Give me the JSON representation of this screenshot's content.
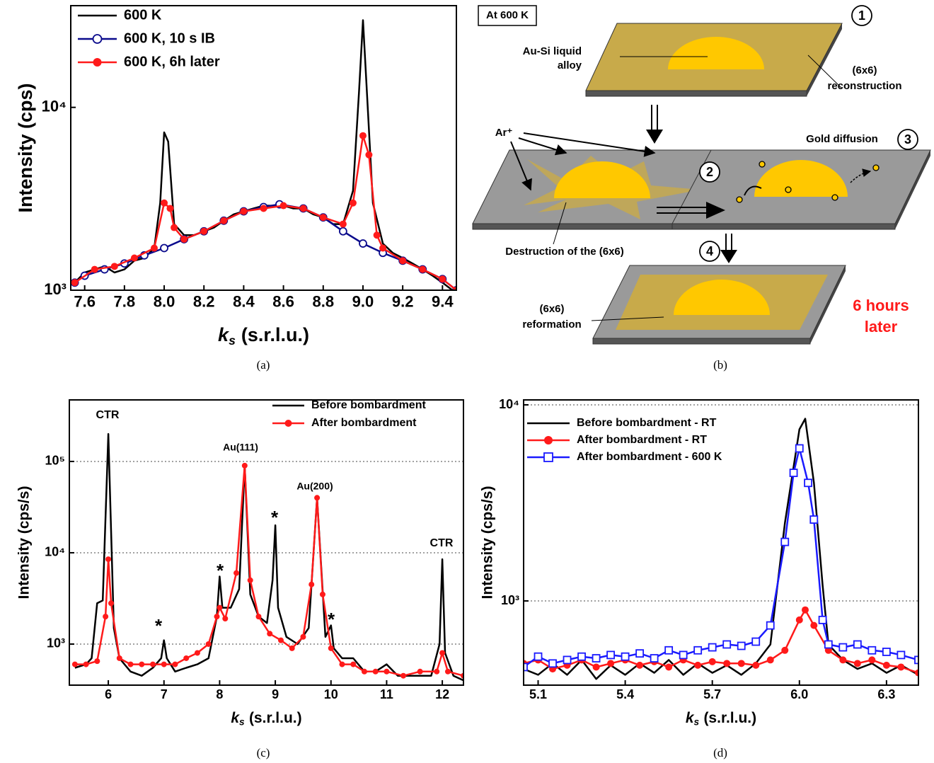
{
  "chart_data": [
    {
      "type": "line",
      "caption": "(a)",
      "x_label": {
        "symbol": "k",
        "subscript": "s",
        "unit": "(s.r.l.u.)"
      },
      "y_label": "Intensity (cps)",
      "xlim": [
        7.53,
        9.47
      ],
      "ylim": [
        1000,
        36000
      ],
      "y_scale": "log",
      "grid": false,
      "legend": "upper-left",
      "xticks": [
        7.6,
        7.8,
        {
          "value": 8,
          "label": "8.0"
        },
        8.2,
        8.4,
        8.6,
        8.8,
        {
          "value": 9,
          "label": "9.0"
        },
        9.2,
        9.4
      ],
      "yticks": [
        {
          "value": 1000,
          "label": "10³"
        },
        {
          "value": 10000,
          "label": "10⁴"
        }
      ],
      "series": [
        {
          "name": "600 K",
          "color": "#000000",
          "marker": "none",
          "x": [
            7.55,
            7.6,
            7.65,
            7.7,
            7.75,
            7.8,
            7.85,
            7.9,
            7.95,
            7.98,
            8.0,
            8.02,
            8.05,
            8.1,
            8.15,
            8.2,
            8.25,
            8.3,
            8.35,
            8.4,
            8.45,
            8.5,
            8.55,
            8.6,
            8.65,
            8.7,
            8.75,
            8.8,
            8.85,
            8.9,
            8.95,
            8.98,
            9.0,
            9.02,
            9.05,
            9.1,
            9.15,
            9.2,
            9.25,
            9.3,
            9.35,
            9.4,
            9.45
          ],
          "values": [
            1100,
            1250,
            1300,
            1350,
            1250,
            1300,
            1450,
            1500,
            1700,
            3000,
            7300,
            6500,
            2300,
            2000,
            2000,
            2100,
            2200,
            2400,
            2600,
            2700,
            2800,
            2900,
            2900,
            2900,
            2800,
            2800,
            2600,
            2500,
            2300,
            2300,
            3500,
            12000,
            30000,
            12000,
            3000,
            1800,
            1600,
            1500,
            1400,
            1300,
            1200,
            1100,
            1000
          ]
        },
        {
          "name": "600 K, 10 s IB",
          "color": "#0a0a8c",
          "marker": "open-circle",
          "x": [
            7.55,
            7.6,
            7.7,
            7.8,
            7.9,
            8.0,
            8.1,
            8.2,
            8.3,
            8.4,
            8.5,
            8.58,
            8.7,
            8.8,
            8.9,
            9.0,
            9.1,
            9.2,
            9.3,
            9.4,
            9.47
          ],
          "values": [
            1100,
            1200,
            1300,
            1400,
            1550,
            1700,
            1900,
            2100,
            2400,
            2700,
            2850,
            2950,
            2800,
            2500,
            2100,
            1800,
            1600,
            1450,
            1300,
            1150,
            1000
          ]
        },
        {
          "name": "600 K, 6h later",
          "color": "#ff1a1a",
          "marker": "filled-circle",
          "x": [
            7.55,
            7.65,
            7.75,
            7.85,
            7.95,
            8.0,
            8.03,
            8.05,
            8.1,
            8.2,
            8.3,
            8.4,
            8.5,
            8.6,
            8.7,
            8.8,
            8.9,
            8.95,
            9.0,
            9.03,
            9.07,
            9.1,
            9.2,
            9.3,
            9.4,
            9.47
          ],
          "values": [
            1100,
            1300,
            1350,
            1500,
            1700,
            3000,
            2800,
            2200,
            1900,
            2100,
            2400,
            2700,
            2800,
            2900,
            2800,
            2500,
            2300,
            3000,
            7000,
            5500,
            2000,
            1700,
            1450,
            1300,
            1150,
            1000
          ]
        }
      ]
    },
    {
      "type": "line",
      "caption": "(c)",
      "x_label": {
        "symbol": "k",
        "subscript": "s",
        "unit": "(s.r.l.u.)"
      },
      "y_label": "Intensity (cps/s)",
      "xlim": [
        5.3,
        12.38
      ],
      "ylim": [
        355,
        472000
      ],
      "y_scale": "log",
      "grid": true,
      "legend": "upper-right",
      "xticks": [
        6,
        7,
        8,
        9,
        10,
        11,
        12
      ],
      "yticks": [
        {
          "value": 1000,
          "label": "10³"
        },
        {
          "value": 10000,
          "label": "10⁴"
        },
        {
          "value": 100000,
          "label": "10⁵"
        }
      ],
      "annotations": [
        "CTR",
        "Au(111)",
        "Au(200)",
        "CTR",
        "*",
        "*",
        "*",
        "*"
      ],
      "series": [
        {
          "name": "Before bombardment",
          "color": "#000000",
          "marker": "none",
          "x": [
            5.4,
            5.6,
            5.7,
            5.8,
            5.9,
            6.0,
            6.1,
            6.2,
            6.4,
            6.6,
            6.8,
            6.95,
            7.0,
            7.05,
            7.2,
            7.4,
            7.6,
            7.8,
            7.95,
            8.0,
            8.05,
            8.2,
            8.35,
            8.45,
            8.55,
            8.7,
            8.85,
            8.95,
            9.0,
            9.05,
            9.2,
            9.4,
            9.6,
            9.75,
            9.9,
            10.0,
            10.05,
            10.2,
            10.4,
            10.6,
            10.8,
            11.0,
            11.2,
            11.5,
            11.8,
            11.95,
            12.0,
            12.05,
            12.2,
            12.38
          ],
          "values": [
            550,
            600,
            700,
            2800,
            3000,
            200000,
            1500,
            700,
            500,
            450,
            550,
            700,
            1100,
            700,
            500,
            550,
            600,
            700,
            2000,
            5500,
            2500,
            2500,
            4000,
            90000,
            3500,
            2000,
            1700,
            5000,
            20000,
            2500,
            1200,
            1000,
            1500,
            40000,
            1200,
            1600,
            900,
            700,
            700,
            500,
            500,
            600,
            450,
            450,
            450,
            1000,
            8500,
            800,
            450,
            400
          ]
        },
        {
          "name": "After bombardment",
          "color": "#ff1a1a",
          "marker": "filled-circle",
          "x": [
            5.4,
            5.6,
            5.8,
            5.95,
            6.0,
            6.05,
            6.2,
            6.4,
            6.6,
            6.8,
            7.0,
            7.2,
            7.4,
            7.6,
            7.8,
            7.95,
            8.0,
            8.1,
            8.3,
            8.45,
            8.55,
            8.7,
            8.9,
            9.1,
            9.3,
            9.5,
            9.65,
            9.75,
            9.85,
            10.0,
            10.2,
            10.4,
            10.6,
            10.8,
            11.0,
            11.3,
            11.6,
            11.9,
            12.0,
            12.1,
            12.38
          ],
          "values": [
            600,
            600,
            650,
            2000,
            8500,
            2800,
            700,
            600,
            600,
            600,
            600,
            600,
            700,
            800,
            1000,
            2000,
            2500,
            1900,
            6000,
            90000,
            5000,
            2000,
            1300,
            1100,
            900,
            1200,
            4500,
            40000,
            3500,
            900,
            600,
            600,
            500,
            500,
            500,
            450,
            500,
            500,
            800,
            500,
            450
          ]
        }
      ]
    },
    {
      "type": "line",
      "caption": "(d)",
      "x_label": {
        "symbol": "k",
        "subscript": "s",
        "unit": "(s.r.l.u.)"
      },
      "y_label": "Intensity (cps/s)",
      "xlim": [
        5.05,
        6.41
      ],
      "ylim": [
        372,
        10600
      ],
      "y_scale": "log",
      "grid": true,
      "legend": "upper-left",
      "xticks": [
        5.1,
        5.4,
        5.7,
        {
          "value": 6,
          "label": "6.0"
        },
        6.3
      ],
      "yticks": [
        {
          "value": 1000,
          "label": "10³"
        },
        {
          "value": 10000,
          "label": "10⁴"
        }
      ],
      "series": [
        {
          "name": "Before bombardment - RT",
          "color": "#000000",
          "marker": "none",
          "x": [
            5.05,
            5.1,
            5.15,
            5.2,
            5.25,
            5.3,
            5.35,
            5.4,
            5.45,
            5.5,
            5.55,
            5.6,
            5.65,
            5.7,
            5.75,
            5.8,
            5.85,
            5.9,
            5.95,
            6.0,
            6.02,
            6.05,
            6.08,
            6.1,
            6.15,
            6.2,
            6.25,
            6.3,
            6.35,
            6.41
          ],
          "values": [
            450,
            420,
            480,
            420,
            500,
            400,
            470,
            420,
            480,
            430,
            500,
            420,
            480,
            430,
            470,
            420,
            480,
            600,
            2500,
            7500,
            8500,
            4000,
            1200,
            600,
            500,
            450,
            480,
            430,
            470,
            420
          ]
        },
        {
          "name": "After bombardment - RT",
          "color": "#ff1a1a",
          "marker": "filled-circle",
          "x": [
            5.05,
            5.1,
            5.15,
            5.2,
            5.25,
            5.3,
            5.35,
            5.4,
            5.45,
            5.5,
            5.55,
            5.6,
            5.65,
            5.7,
            5.75,
            5.8,
            5.85,
            5.9,
            5.95,
            6.0,
            6.02,
            6.05,
            6.1,
            6.15,
            6.2,
            6.25,
            6.3,
            6.35,
            6.41
          ],
          "values": [
            480,
            500,
            450,
            470,
            500,
            460,
            480,
            500,
            470,
            490,
            460,
            500,
            470,
            490,
            480,
            480,
            470,
            500,
            560,
            800,
            900,
            750,
            560,
            500,
            480,
            500,
            470,
            460,
            430
          ]
        },
        {
          "name": "After bombardment - 600 K",
          "color": "#1a1aff",
          "marker": "open-square",
          "x": [
            5.05,
            5.1,
            5.15,
            5.2,
            5.25,
            5.3,
            5.35,
            5.4,
            5.45,
            5.5,
            5.55,
            5.6,
            5.65,
            5.7,
            5.75,
            5.8,
            5.85,
            5.9,
            5.95,
            5.98,
            6.0,
            6.03,
            6.05,
            6.08,
            6.1,
            6.15,
            6.2,
            6.25,
            6.3,
            6.35,
            6.41
          ],
          "values": [
            460,
            520,
            480,
            500,
            520,
            510,
            530,
            520,
            540,
            510,
            560,
            530,
            560,
            580,
            600,
            590,
            620,
            750,
            2000,
            4500,
            6000,
            4000,
            2600,
            800,
            600,
            580,
            600,
            560,
            550,
            530,
            500
          ]
        }
      ]
    }
  ],
  "diagram": {
    "caption": "(b)",
    "condition": "At 600 K",
    "steps": [
      "1",
      "2",
      "3",
      "4"
    ],
    "alloy": [
      "Au-Si liquid",
      "alloy"
    ],
    "reconstruction": [
      "(6x6)",
      "reconstruction"
    ],
    "ion": "Ar⁺",
    "diffusion": "Gold diffusion",
    "destruction": "Destruction of the (6x6)",
    "reformation": [
      "(6x6)",
      "reformation"
    ],
    "delay": [
      "6 hours",
      "later"
    ]
  }
}
